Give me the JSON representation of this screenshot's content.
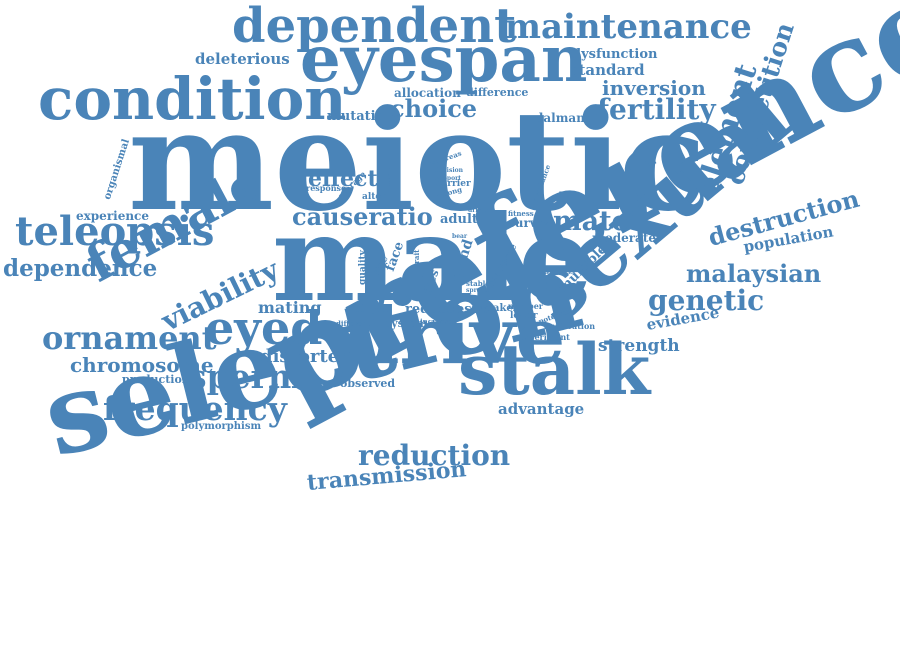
{
  "words": {
    "meiotic": "meiotic",
    "preference": "preference",
    "selection": "selection",
    "male": "male",
    "drive": "drive",
    "stalk": "stalk",
    "sexual": "sexual",
    "eyespan": "eyespan",
    "dependent": "dependent",
    "condition": "condition",
    "maintenance": "maintenance",
    "female": "female",
    "eyed": "eyed",
    "teleopsis": "teleopsis",
    "ornament": "ornament",
    "frequency": "frequency",
    "sperm": "sperm",
    "element": "element",
    "competition": "competition",
    "fertility": "fertility",
    "viability": "viability",
    "genetic": "genetic",
    "malaysian": "malaysian",
    "destruction": "destruction",
    "reduction": "reduction",
    "transmission": "transmission",
    "dependence": "dependence",
    "chromosome": "chromosome",
    "choice": "choice",
    "inversion": "inversion",
    "mate": "mate",
    "causeratio": "causeratio",
    "effect": "effect",
    "population": "population",
    "evidence": "evidence",
    "strength": "strength",
    "distorter": "distorter",
    "mating": "mating",
    "advantage": "advantage",
    "deleterious": "deleterious",
    "dysfunction": "dysfunction",
    "standard": "standard",
    "allocation": "allocation",
    "difference": "difference",
    "mutation": "mutation",
    "dalmanni": "dalmanni",
    "experience": "experience",
    "organismal": "organismal",
    "response": "response",
    "production": "production",
    "polymorphism": "polymorphism",
    "observed": "observed",
    "reduce": "reduce",
    "testis": "testis",
    "weaker": "weaker",
    "adult": "adult",
    "survival": "survival",
    "fitness": "fitness",
    "moderate": "moderate",
    "multiple": "multiple",
    "resource": "resource",
    "alter": "alter",
    "average": "average",
    "whereas": "whereas",
    "decision": "decision",
    "carrier": "carrier",
    "support": "support",
    "strong": "strong",
    "avoidance": "avoidance",
    "size": "size",
    "quality": "quality",
    "face": "face",
    "flies": "flies",
    "gland": "gland",
    "system": "system",
    "increase": "increase",
    "lower": "lower",
    "experiment": "experiment",
    "implication": "implication",
    "potential": "potential",
    "number": "number",
    "success": "success",
    "subject": "subject",
    "different": "different",
    "trait": "trait",
    "stable": "stable",
    "driver": "driver",
    "spread": "spread",
    "bear": "bear",
    "depend": "depend"
  }
}
